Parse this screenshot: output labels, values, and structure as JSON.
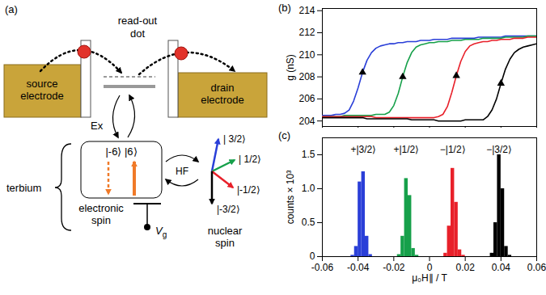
{
  "panel_a": {
    "letter": "(a)",
    "readout_dot": "read-out dot",
    "source": "source electrode",
    "drain": "drain electrode",
    "exchange": "Ex",
    "terbium": "terbium",
    "electronic_states": "|-6⟩ |6⟩",
    "electronic_spin": "electronic spin",
    "hyperfine": "HF",
    "gate": {
      "symbol": "V",
      "subscript": "g"
    },
    "nuclear_states": [
      "| 3/2⟩",
      "| 1/2⟩",
      "|-1/2⟩",
      "|-3/2⟩"
    ],
    "nuclear_spin": "nuclear spin"
  },
  "chart_data": [
    {
      "type": "line",
      "title": "(b)",
      "y_label": "g (nS)",
      "x": [
        -0.06,
        -0.0575,
        -0.055,
        -0.0525,
        -0.05,
        -0.0475,
        -0.045,
        -0.0425,
        -0.04,
        -0.0375,
        -0.035,
        -0.0325,
        -0.03,
        -0.0275,
        -0.025,
        -0.0225,
        -0.02,
        -0.0175,
        -0.015,
        -0.0125,
        -0.01,
        -0.0075,
        -0.005,
        -0.0025,
        0,
        0.0025,
        0.005,
        0.0075,
        0.01,
        0.0125,
        0.015,
        0.0175,
        0.02,
        0.0225,
        0.025,
        0.0275,
        0.03,
        0.0325,
        0.035,
        0.0375,
        0.04,
        0.0425,
        0.045,
        0.0475,
        0.05,
        0.0525,
        0.055,
        0.0575,
        0.06
      ],
      "series": [
        {
          "color": "#2a3fd8",
          "values": [
            204.5,
            204.5,
            204.5,
            204.6,
            204.6,
            204.7,
            205.0,
            205.8,
            207.0,
            208.4,
            209.5,
            210.2,
            210.6,
            210.8,
            210.9,
            211.0,
            211.0,
            211.1,
            211.1,
            211.2,
            211.2,
            211.2,
            211.3,
            211.3,
            211.3,
            211.4,
            211.4,
            211.4,
            211.4,
            211.5,
            211.5,
            211.5,
            211.5,
            211.5,
            211.5,
            211.6,
            211.6,
            211.6,
            211.6,
            211.6,
            211.6,
            211.7,
            211.7,
            211.7,
            211.7,
            211.7,
            211.7,
            211.7,
            211.7
          ]
        },
        {
          "color": "#16a04a",
          "values": [
            204.4,
            204.4,
            204.4,
            204.4,
            204.4,
            204.5,
            204.5,
            204.5,
            204.5,
            204.5,
            204.5,
            204.5,
            204.6,
            204.6,
            204.6,
            204.8,
            205.4,
            206.5,
            208.0,
            209.3,
            210.2,
            210.7,
            210.9,
            211.0,
            211.1,
            211.1,
            211.2,
            211.2,
            211.2,
            211.3,
            211.3,
            211.3,
            211.4,
            211.4,
            211.4,
            211.4,
            211.5,
            211.5,
            211.5,
            211.5,
            211.5,
            211.6,
            211.6,
            211.6,
            211.6,
            211.6,
            211.7,
            211.7,
            211.7
          ]
        },
        {
          "color": "#e8202a",
          "values": [
            204.4,
            204.4,
            204.4,
            204.4,
            204.4,
            204.4,
            204.4,
            204.4,
            204.4,
            204.4,
            204.4,
            204.4,
            204.3,
            204.3,
            204.3,
            204.3,
            204.3,
            204.3,
            204.3,
            204.3,
            204.3,
            204.3,
            204.3,
            204.3,
            204.3,
            204.3,
            204.4,
            204.6,
            205.3,
            206.6,
            208.1,
            209.4,
            210.3,
            210.8,
            211.0,
            211.1,
            211.2,
            211.2,
            211.3,
            211.3,
            211.4,
            211.4,
            211.4,
            211.5,
            211.5,
            211.5,
            211.6,
            211.6,
            211.6
          ]
        },
        {
          "color": "#000000",
          "values": [
            204.3,
            204.3,
            204.3,
            204.3,
            204.3,
            204.3,
            204.3,
            204.3,
            204.3,
            204.3,
            204.2,
            204.2,
            204.2,
            204.2,
            204.2,
            204.2,
            204.2,
            204.2,
            204.2,
            204.2,
            204.1,
            204.1,
            204.1,
            204.1,
            204.1,
            204.1,
            204.0,
            204.0,
            204.0,
            204.0,
            204.0,
            204.0,
            204.1,
            204.1,
            204.1,
            204.1,
            204.1,
            204.4,
            205.0,
            206.0,
            207.4,
            208.7,
            209.6,
            210.2,
            210.5,
            210.7,
            210.8,
            210.9,
            211.0
          ]
        }
      ],
      "xlim": [
        -0.06,
        0.06
      ],
      "xticks": [
        -0.06,
        -0.04,
        -0.02,
        0,
        0.02,
        0.04,
        0.06
      ],
      "ylim": [
        203.5,
        214.2
      ],
      "yticks": [
        204,
        206,
        208,
        210,
        212,
        214
      ],
      "tick_labels": "y"
    },
    {
      "type": "histogram",
      "title": "(c)",
      "x_label": "μ₀H∥ / T",
      "y_label": "counts × 10³",
      "bins": [
        -0.06,
        -0.058,
        -0.056,
        -0.054,
        -0.052,
        -0.05,
        -0.048,
        -0.046,
        -0.044,
        -0.042,
        -0.04,
        -0.038,
        -0.036,
        -0.034,
        -0.032,
        -0.03,
        -0.028,
        -0.026,
        -0.024,
        -0.022,
        -0.02,
        -0.018,
        -0.016,
        -0.014,
        -0.012,
        -0.01,
        -0.008,
        -0.006,
        -0.004,
        -0.002,
        0,
        0.002,
        0.004,
        0.006,
        0.008,
        0.01,
        0.012,
        0.014,
        0.016,
        0.018,
        0.02,
        0.022,
        0.024,
        0.026,
        0.028,
        0.03,
        0.032,
        0.034,
        0.036,
        0.038,
        0.04,
        0.042,
        0.044,
        0.046,
        0.048,
        0.05,
        0.052,
        0.054,
        0.056,
        0.058,
        0.06
      ],
      "series": [
        {
          "name": "+|3/2⟩",
          "color": "#2a3fd8",
          "values": [
            0,
            0,
            0,
            0,
            0,
            0,
            0,
            0,
            0.02,
            0.15,
            1.1,
            1.25,
            0.3,
            0.03,
            0,
            0,
            0,
            0,
            0,
            0,
            0,
            0,
            0,
            0,
            0,
            0,
            0,
            0,
            0,
            0,
            0,
            0,
            0,
            0,
            0,
            0,
            0,
            0,
            0,
            0,
            0,
            0,
            0,
            0,
            0,
            0,
            0,
            0,
            0,
            0,
            0,
            0,
            0,
            0,
            0,
            0,
            0,
            0,
            0,
            0
          ]
        },
        {
          "name": "+|1/2⟩",
          "color": "#16a04a",
          "values": [
            0,
            0,
            0,
            0,
            0,
            0,
            0,
            0,
            0,
            0,
            0,
            0,
            0,
            0,
            0,
            0,
            0,
            0,
            0,
            0,
            0,
            0.03,
            0.3,
            1.15,
            0.9,
            0.12,
            0.02,
            0,
            0,
            0,
            0,
            0,
            0,
            0,
            0,
            0,
            0,
            0,
            0,
            0,
            0,
            0,
            0,
            0,
            0,
            0,
            0,
            0,
            0,
            0,
            0,
            0,
            0,
            0,
            0,
            0,
            0,
            0,
            0,
            0
          ]
        },
        {
          "name": "−|1/2⟩",
          "color": "#e8202a",
          "values": [
            0,
            0,
            0,
            0,
            0,
            0,
            0,
            0,
            0,
            0,
            0,
            0,
            0,
            0,
            0,
            0,
            0,
            0,
            0,
            0,
            0,
            0,
            0,
            0,
            0,
            0,
            0,
            0,
            0,
            0,
            0,
            0,
            0,
            0,
            0.05,
            0.45,
            1.3,
            0.8,
            0.1,
            0.02,
            0,
            0,
            0,
            0,
            0,
            0,
            0,
            0,
            0,
            0,
            0,
            0,
            0,
            0,
            0,
            0,
            0,
            0,
            0,
            0
          ]
        },
        {
          "name": "−|3/2⟩",
          "color": "#000000",
          "values": [
            0,
            0,
            0,
            0,
            0,
            0,
            0,
            0,
            0,
            0,
            0,
            0,
            0,
            0,
            0,
            0,
            0,
            0,
            0,
            0,
            0,
            0,
            0,
            0,
            0,
            0,
            0,
            0,
            0,
            0,
            0,
            0,
            0,
            0,
            0,
            0,
            0,
            0,
            0,
            0,
            0,
            0,
            0,
            0,
            0,
            0,
            0,
            0.05,
            0.5,
            1.5,
            1.0,
            0.15,
            0.02,
            0,
            0,
            0,
            0,
            0,
            0,
            0
          ]
        }
      ],
      "xlim": [
        -0.06,
        0.06
      ],
      "xticks": [
        -0.06,
        -0.04,
        -0.02,
        0,
        0.02,
        0.04,
        0.06
      ],
      "ylim": [
        0,
        1.75
      ],
      "yticks": [
        0,
        0.5,
        {
          "value": 1,
          "label": "1.0"
        },
        1.5
      ]
    }
  ]
}
